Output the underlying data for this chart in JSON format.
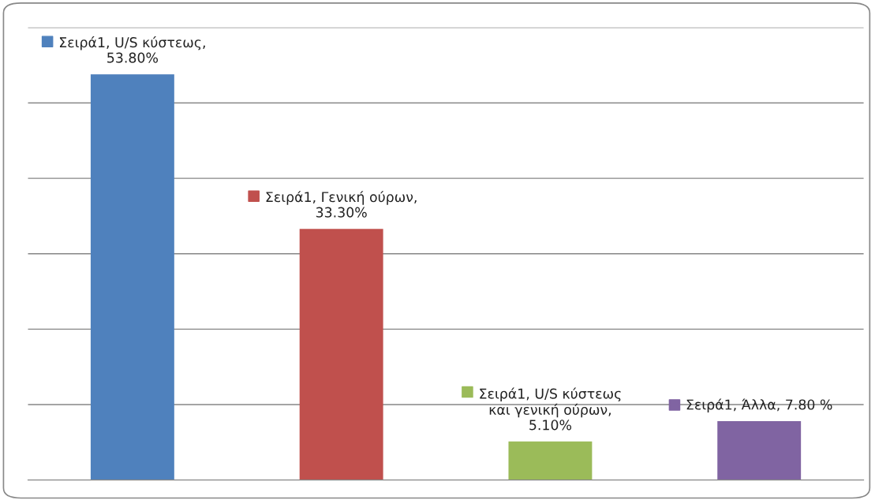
{
  "chart_data": {
    "type": "bar",
    "categories": [
      null,
      null,
      null,
      null
    ],
    "values": [
      53.8,
      33.3,
      5.1,
      7.8
    ],
    "colors": [
      "#4f81bd",
      "#c0504d",
      "#9bbb59",
      "#8064a2"
    ],
    "value_labels": [
      "Σειρά1, U/S κύστεως, 53.80%",
      "Σειρά1, Γενική ούρων, 33.30%",
      "Σειρά1, U/S κύστεως και γενική ούρων, 5.10%",
      "Σειρά1, Άλλα, 7.80 %"
    ],
    "ylim": [
      0,
      60
    ],
    "yticks": [
      {
        "value": 0,
        "label": null
      },
      {
        "value": 10,
        "label": null
      },
      {
        "value": 20,
        "label": null
      },
      {
        "value": 30,
        "label": null
      },
      {
        "value": 40,
        "label": null
      },
      {
        "value": 50,
        "label": null
      },
      {
        "value": 60,
        "label": null
      }
    ],
    "grid": "y",
    "legend": false
  }
}
